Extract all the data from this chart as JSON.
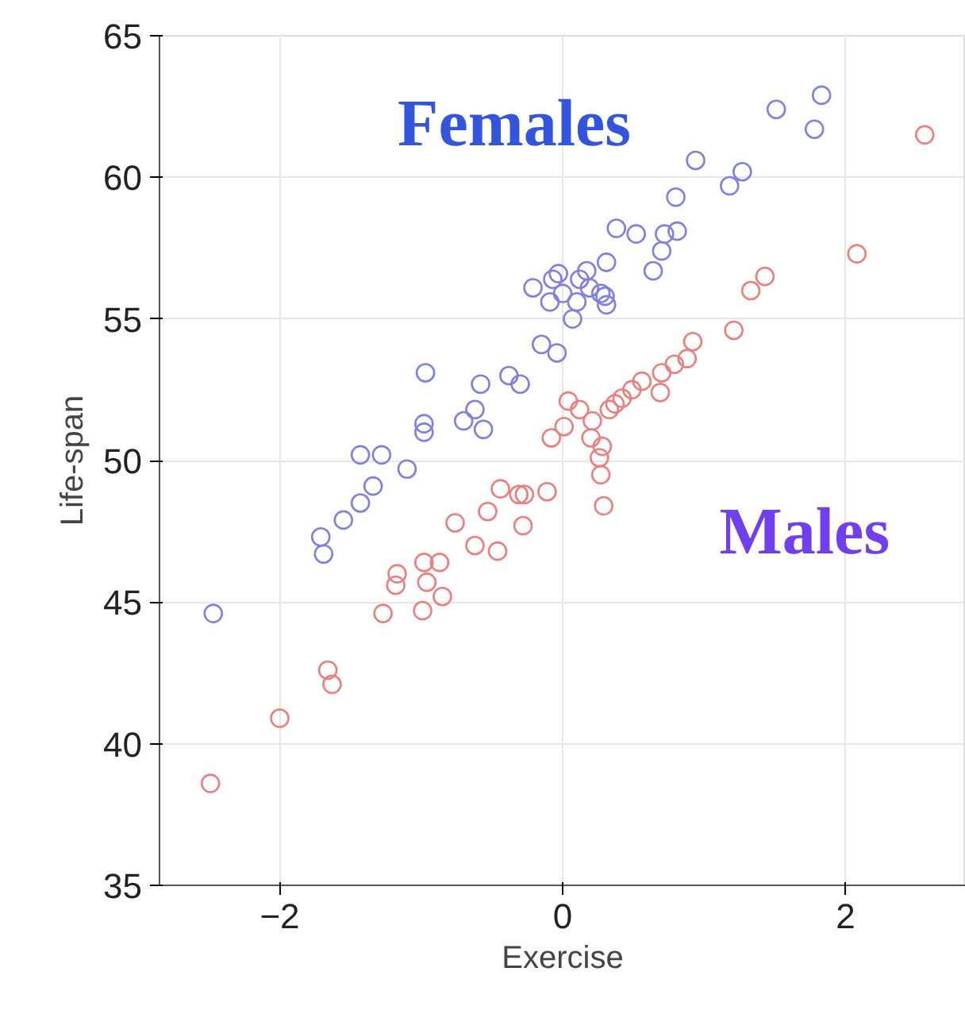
{
  "chart_data": {
    "type": "scatter",
    "xlabel": "Exercise",
    "ylabel": "Life-span",
    "xlim": [
      -2.85,
      2.85
    ],
    "ylim": [
      35,
      65
    ],
    "xticks": [
      -2,
      0,
      2
    ],
    "yticks": [
      35,
      40,
      45,
      50,
      55,
      60,
      65
    ],
    "grid": true,
    "marker": "circle",
    "legend": false,
    "series": [
      {
        "name": "Females",
        "color": "#8080e0",
        "x": [
          -2.47,
          -1.71,
          -1.69,
          -1.55,
          -1.43,
          -1.34,
          -1.43,
          -1.28,
          -1.1,
          -0.97,
          -0.98,
          -0.98,
          -0.7,
          -0.58,
          -0.62,
          -0.56,
          -0.38,
          -0.3,
          -0.21,
          -0.15,
          -0.09,
          -0.07,
          -0.04,
          -0.03,
          0.0,
          0.07,
          0.1,
          0.12,
          0.17,
          0.19,
          0.27,
          0.31,
          0.31,
          0.3,
          0.38,
          0.52,
          0.64,
          0.7,
          0.72,
          0.8,
          0.81,
          0.94,
          1.18,
          1.27,
          1.51,
          1.78,
          1.83
        ],
        "values": [
          44.6,
          47.3,
          46.7,
          47.9,
          48.5,
          49.1,
          50.2,
          50.2,
          49.7,
          53.1,
          51.3,
          51.0,
          51.4,
          52.7,
          51.8,
          51.1,
          53.0,
          52.7,
          56.1,
          54.1,
          55.6,
          56.4,
          53.8,
          56.6,
          55.9,
          55.0,
          55.6,
          56.4,
          56.7,
          56.1,
          55.9,
          57.0,
          55.5,
          55.8,
          58.2,
          58.0,
          56.7,
          57.4,
          58.0,
          59.3,
          58.1,
          60.6,
          59.7,
          60.2,
          62.4,
          61.7,
          62.9
        ]
      },
      {
        "name": "Males",
        "color": "#e88080",
        "x": [
          -2.49,
          -2.0,
          -1.66,
          -1.63,
          -1.27,
          -1.17,
          -1.18,
          -0.99,
          -0.98,
          -0.96,
          -0.85,
          -0.87,
          -0.76,
          -0.62,
          -0.53,
          -0.46,
          -0.44,
          -0.31,
          -0.28,
          -0.27,
          -0.11,
          -0.08,
          0.01,
          0.04,
          0.12,
          0.21,
          0.2,
          0.26,
          0.27,
          0.28,
          0.29,
          0.33,
          0.37,
          0.42,
          0.49,
          0.56,
          0.69,
          0.7,
          0.79,
          0.88,
          0.92,
          1.21,
          1.33,
          1.43,
          2.08,
          2.56
        ],
        "values": [
          38.6,
          40.9,
          42.6,
          42.1,
          44.6,
          46.0,
          45.6,
          44.7,
          46.4,
          45.7,
          45.2,
          46.4,
          47.8,
          47.0,
          48.2,
          46.8,
          49.0,
          48.8,
          47.7,
          48.8,
          48.9,
          50.8,
          51.2,
          52.1,
          51.8,
          51.4,
          50.8,
          50.1,
          49.5,
          50.5,
          48.4,
          51.8,
          52.0,
          52.2,
          52.5,
          52.8,
          52.4,
          53.1,
          53.4,
          53.6,
          54.2,
          54.6,
          56.0,
          56.5,
          57.3,
          61.5
        ]
      }
    ]
  }
}
